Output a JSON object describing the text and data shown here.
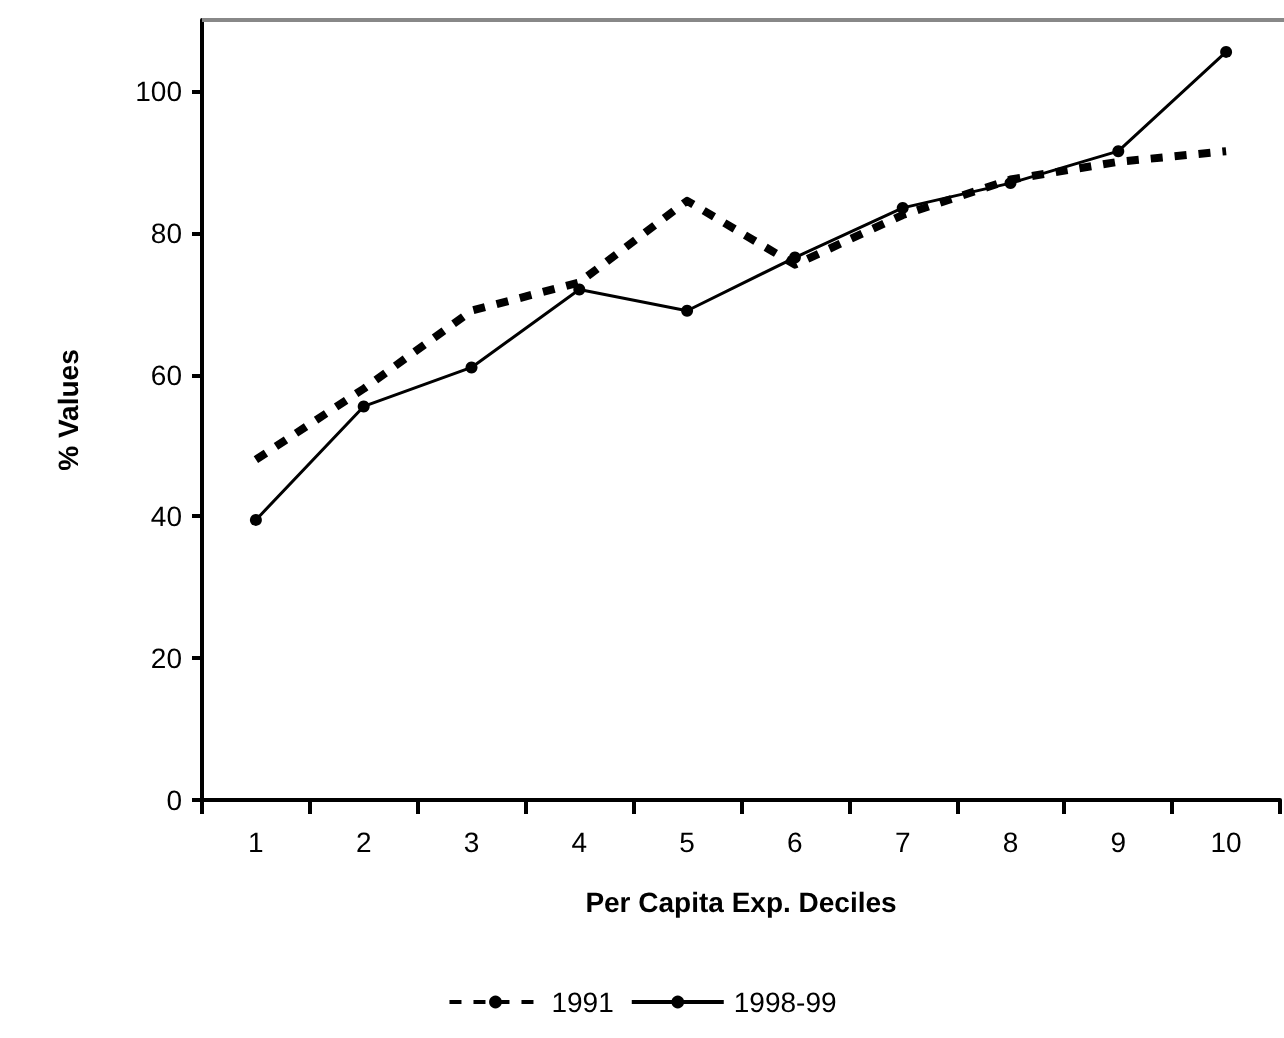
{
  "chart_data": {
    "type": "line",
    "xlabel": "Per Capita Exp. Deciles",
    "ylabel": "% Values",
    "categories": [
      "1",
      "2",
      "3",
      "4",
      "5",
      "6",
      "7",
      "8",
      "9",
      "10"
    ],
    "series": [
      {
        "name": "1991",
        "color": "#000000",
        "line_style": "dashed",
        "marker": "none",
        "values": [
          48,
          58,
          69,
          73,
          84.5,
          75.5,
          82.5,
          87.5,
          90,
          91.5
        ]
      },
      {
        "name": "1998-99",
        "color": "#000000",
        "line_style": "solid",
        "marker": "circle",
        "values": [
          39.5,
          55.5,
          61,
          72,
          69,
          76.5,
          83.5,
          87,
          91.5,
          105.5
        ]
      }
    ],
    "ylim": [
      0,
      110
    ],
    "yticks": [
      0,
      20,
      40,
      60,
      80,
      100
    ],
    "grid": false,
    "legend": "bottom"
  }
}
